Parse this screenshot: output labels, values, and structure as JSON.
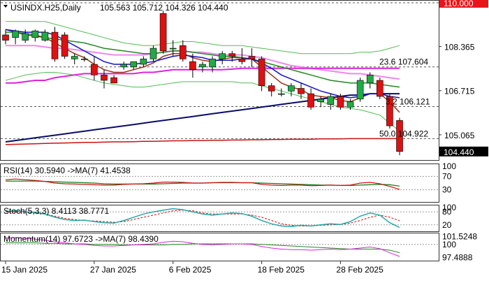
{
  "header": {
    "symbol": "USINDX.H25,Daily",
    "ohlc": "105.563 105.712 104.326 104.440"
  },
  "price_axis": {
    "ticks": [
      "110.000",
      "108.365",
      "106.715",
      "105.065",
      "104.440"
    ],
    "current": "104.440",
    "top_badge": "110.000"
  },
  "date_axis": [
    "15 Jan 2025",
    "27 Jan 2025",
    "6 Feb 2025",
    "18 Feb 2025",
    "28 Feb 2025"
  ],
  "fibo_levels": [
    {
      "label": "23.6 107.604",
      "value": 107.604
    },
    {
      "label": "3.2 106.121",
      "value": 106.121
    },
    {
      "label": "50.0 104.922",
      "value": 104.922
    }
  ],
  "rsi_panel": {
    "title": "RSI(14) 30.5940  ->MA(7) 41.4538",
    "axis": [
      "100",
      "70",
      "30",
      "0"
    ]
  },
  "stoch_panel": {
    "title": "Stoch(5,3,3) 8.4113 38.7771",
    "axis": [
      "100",
      "80",
      "20",
      "0"
    ]
  },
  "momentum_panel": {
    "title": "Momentum(14) 97.6723  ->MA(7) 98.4390",
    "axis": [
      "101.5248",
      "100",
      "97.4888"
    ]
  },
  "colors": {
    "up": "#22aa44",
    "down": "#dd1111",
    "blue_ma": "#1111cc",
    "magenta_ma": "#dd22dd",
    "green_ma": "#228822",
    "brown_ma": "#993311",
    "navy_ma": "#0b0b6e",
    "red_ma": "#cc1111",
    "pink_ma": "#ee88ee",
    "bb": "#55bb55"
  },
  "chart_data": {
    "type": "candlestick",
    "ylim": [
      104.2,
      110.0
    ],
    "candles": [
      {
        "o": 108.8,
        "h": 109.0,
        "l": 108.45,
        "c": 108.6
      },
      {
        "o": 108.7,
        "h": 109.0,
        "l": 108.45,
        "c": 108.95
      },
      {
        "o": 108.6,
        "h": 109.0,
        "l": 108.5,
        "c": 108.85
      },
      {
        "o": 108.7,
        "h": 109.0,
        "l": 108.55,
        "c": 108.95
      },
      {
        "o": 108.6,
        "h": 109.0,
        "l": 108.55,
        "c": 108.9
      },
      {
        "o": 108.9,
        "h": 109.1,
        "l": 107.8,
        "c": 107.9
      },
      {
        "o": 108.8,
        "h": 108.9,
        "l": 107.9,
        "c": 108.0
      },
      {
        "o": 107.9,
        "h": 108.1,
        "l": 107.7,
        "c": 108.0
      },
      {
        "o": 107.9,
        "h": 108.0,
        "l": 107.8,
        "c": 107.9
      },
      {
        "o": 107.7,
        "h": 108.0,
        "l": 107.1,
        "c": 107.3
      },
      {
        "o": 107.3,
        "h": 107.5,
        "l": 106.8,
        "c": 107.1
      },
      {
        "o": 107.2,
        "h": 107.3,
        "l": 107.0,
        "c": 107.0
      },
      {
        "o": 107.6,
        "h": 107.8,
        "l": 107.5,
        "c": 107.7
      },
      {
        "o": 107.6,
        "h": 107.8,
        "l": 107.5,
        "c": 107.8
      },
      {
        "o": 107.7,
        "h": 108.0,
        "l": 107.6,
        "c": 107.9
      },
      {
        "o": 107.9,
        "h": 108.4,
        "l": 107.8,
        "c": 108.3
      },
      {
        "o": 109.6,
        "h": 109.7,
        "l": 108.1,
        "c": 108.2
      },
      {
        "o": 108.3,
        "h": 108.6,
        "l": 108.0,
        "c": 108.3
      },
      {
        "o": 108.4,
        "h": 108.6,
        "l": 107.8,
        "c": 107.9
      },
      {
        "o": 107.8,
        "h": 108.1,
        "l": 107.2,
        "c": 107.5
      },
      {
        "o": 107.6,
        "h": 107.8,
        "l": 107.4,
        "c": 107.7
      },
      {
        "o": 107.6,
        "h": 108.0,
        "l": 107.4,
        "c": 107.9
      },
      {
        "o": 107.9,
        "h": 108.2,
        "l": 107.7,
        "c": 108.1
      },
      {
        "o": 108.1,
        "h": 108.2,
        "l": 107.8,
        "c": 108.0
      },
      {
        "o": 107.9,
        "h": 108.3,
        "l": 107.7,
        "c": 107.8
      },
      {
        "o": 108.0,
        "h": 108.3,
        "l": 107.6,
        "c": 107.9
      },
      {
        "o": 107.9,
        "h": 108.0,
        "l": 106.7,
        "c": 106.9
      },
      {
        "o": 106.9,
        "h": 107.0,
        "l": 106.5,
        "c": 106.7
      },
      {
        "o": 106.6,
        "h": 106.8,
        "l": 106.5,
        "c": 106.6
      },
      {
        "o": 106.7,
        "h": 107.0,
        "l": 106.5,
        "c": 106.9
      },
      {
        "o": 106.8,
        "h": 107.0,
        "l": 106.4,
        "c": 106.6
      },
      {
        "o": 106.6,
        "h": 106.8,
        "l": 106.0,
        "c": 106.1
      },
      {
        "o": 106.3,
        "h": 106.5,
        "l": 106.1,
        "c": 106.4
      },
      {
        "o": 106.2,
        "h": 106.6,
        "l": 106.0,
        "c": 106.5
      },
      {
        "o": 106.5,
        "h": 106.6,
        "l": 106.0,
        "c": 106.1
      },
      {
        "o": 106.1,
        "h": 106.4,
        "l": 106.0,
        "c": 106.3
      },
      {
        "o": 106.4,
        "h": 107.2,
        "l": 106.3,
        "c": 107.1
      },
      {
        "o": 107.0,
        "h": 107.4,
        "l": 106.8,
        "c": 107.3
      },
      {
        "o": 107.1,
        "h": 107.2,
        "l": 106.4,
        "c": 106.5
      },
      {
        "o": 106.5,
        "h": 106.6,
        "l": 105.3,
        "c": 105.4
      },
      {
        "o": 105.6,
        "h": 105.7,
        "l": 104.3,
        "c": 104.44
      }
    ],
    "ma_blue": [
      109.0,
      108.95,
      108.9,
      108.9,
      108.9,
      108.8,
      108.6,
      108.4,
      108.2,
      108.0,
      107.8,
      107.7,
      107.7,
      107.7,
      107.75,
      107.8,
      107.9,
      108.0,
      108.05,
      108.0,
      107.95,
      107.85,
      107.85,
      107.85,
      107.9,
      107.9,
      107.75,
      107.55,
      107.3,
      107.15,
      107.0,
      106.85,
      106.7,
      106.6,
      106.5,
      106.45,
      106.5,
      106.6,
      106.6,
      106.5,
      106.45
    ],
    "ma_magenta": [
      107.0,
      107.0,
      107.05,
      107.1,
      107.1,
      107.2,
      107.25,
      107.3,
      107.35,
      107.35,
      107.35,
      107.35,
      107.35,
      107.35,
      107.4,
      107.4,
      107.45,
      107.5,
      107.5,
      107.5,
      107.5,
      107.5,
      107.5,
      107.52,
      107.55,
      107.55,
      107.55,
      107.55,
      107.55,
      107.55,
      107.55,
      107.55,
      107.55,
      107.55,
      107.55,
      107.55,
      107.55,
      107.55,
      107.55,
      107.55,
      107.55
    ],
    "ma_pink": [
      108.4,
      108.4,
      108.4,
      108.4,
      108.35,
      108.3,
      108.3,
      108.25,
      108.2,
      108.15,
      108.1,
      108.05,
      108.05,
      108.05,
      108.05,
      108.1,
      108.15,
      108.2,
      108.2,
      108.15,
      108.15,
      108.1,
      108.05,
      108.05,
      108.05,
      108.0,
      107.95,
      107.85,
      107.75,
      107.65,
      107.6,
      107.55,
      107.5,
      107.45,
      107.4,
      107.35,
      107.35,
      107.3,
      107.25,
      107.2,
      107.15
    ],
    "ma_green": [
      108.9,
      108.9,
      108.85,
      108.8,
      108.7,
      108.65,
      108.6,
      108.55,
      108.5,
      108.4,
      108.3,
      108.25,
      108.2,
      108.15,
      108.1,
      108.1,
      108.15,
      108.2,
      108.2,
      108.15,
      108.1,
      108.05,
      108.0,
      108.0,
      107.95,
      107.9,
      107.8,
      107.7,
      107.6,
      107.5,
      107.4,
      107.3,
      107.2,
      107.1,
      107.05,
      107.0,
      107.0,
      107.0,
      106.95,
      106.9,
      106.85
    ],
    "ma_brown": [
      109.0,
      108.9,
      108.8,
      108.75,
      108.7,
      108.5,
      108.3,
      108.1,
      107.95,
      107.7,
      107.5,
      107.4,
      107.4,
      107.5,
      107.6,
      107.75,
      108.0,
      108.1,
      108.1,
      107.95,
      107.85,
      107.8,
      107.9,
      107.95,
      107.95,
      107.9,
      107.6,
      107.3,
      107.0,
      106.85,
      106.75,
      106.55,
      106.5,
      106.45,
      106.35,
      106.3,
      106.45,
      106.6,
      106.6,
      106.3,
      105.9
    ],
    "ma_navy": [
      104.8,
      104.85,
      104.9,
      104.95,
      105.0,
      105.05,
      105.1,
      105.15,
      105.2,
      105.25,
      105.3,
      105.35,
      105.4,
      105.45,
      105.5,
      105.55,
      105.6,
      105.65,
      105.7,
      105.75,
      105.8,
      105.85,
      105.9,
      105.95,
      106.0,
      106.05,
      106.1,
      106.15,
      106.2,
      106.25,
      106.3,
      106.35,
      106.4,
      106.45,
      106.5,
      106.55,
      106.55,
      106.6,
      106.6,
      106.6,
      106.6
    ],
    "ma_red": [
      104.7,
      104.71,
      104.72,
      104.73,
      104.74,
      104.75,
      104.76,
      104.77,
      104.78,
      104.78,
      104.79,
      104.8,
      104.8,
      104.81,
      104.82,
      104.82,
      104.83,
      104.84,
      104.84,
      104.85,
      104.85,
      104.86,
      104.86,
      104.87,
      104.87,
      104.88,
      104.88,
      104.89,
      104.89,
      104.9,
      104.9,
      104.9,
      104.91,
      104.91,
      104.91,
      104.92,
      104.92,
      104.92,
      104.92,
      104.92,
      104.92
    ],
    "bb_upper": [
      109.3,
      109.3,
      109.3,
      109.3,
      109.3,
      109.2,
      109.1,
      109.0,
      108.9,
      108.8,
      108.7,
      108.6,
      108.5,
      108.45,
      108.4,
      108.4,
      108.45,
      108.5,
      108.55,
      108.55,
      108.5,
      108.45,
      108.4,
      108.4,
      108.4,
      108.35,
      108.3,
      108.25,
      108.2,
      108.15,
      108.1,
      108.1,
      108.1,
      108.1,
      108.1,
      108.1,
      108.15,
      108.15,
      108.2,
      108.3,
      108.4
    ],
    "bb_lower": [
      107.1,
      107.2,
      107.3,
      107.35,
      107.4,
      107.4,
      107.35,
      107.3,
      107.2,
      107.1,
      107.0,
      106.95,
      106.9,
      106.85,
      106.85,
      106.9,
      106.95,
      107.0,
      107.05,
      107.05,
      107.05,
      107.05,
      107.05,
      107.05,
      107.0,
      107.0,
      106.9,
      106.8,
      106.7,
      106.6,
      106.5,
      106.4,
      106.3,
      106.2,
      106.1,
      106.05,
      106.0,
      105.9,
      105.8,
      105.5,
      105.2
    ],
    "rsi": [
      60,
      62,
      60,
      58,
      55,
      50,
      48,
      47,
      46,
      45,
      44,
      44,
      46,
      47,
      48,
      50,
      53,
      53,
      52,
      50,
      50,
      51,
      52,
      52,
      51,
      51,
      46,
      44,
      43,
      44,
      44,
      42,
      43,
      44,
      43,
      44,
      50,
      52,
      48,
      40,
      31
    ],
    "rsi_ma": [
      56,
      56,
      56,
      56,
      55,
      54,
      53,
      52,
      51,
      50,
      48,
      47,
      47,
      47,
      47,
      47,
      48,
      49,
      50,
      50,
      50,
      51,
      51,
      51,
      51,
      51,
      50,
      49,
      48,
      47,
      46,
      45,
      44,
      44,
      43,
      43,
      44,
      45,
      46,
      45,
      41
    ],
    "stoch_k": [
      82,
      85,
      80,
      78,
      70,
      55,
      45,
      40,
      42,
      35,
      30,
      28,
      40,
      55,
      70,
      80,
      88,
      95,
      90,
      80,
      70,
      65,
      70,
      75,
      72,
      60,
      40,
      25,
      15,
      12,
      18,
      15,
      20,
      25,
      22,
      35,
      60,
      75,
      65,
      30,
      8
    ],
    "stoch_d": [
      80,
      80,
      78,
      75,
      70,
      60,
      50,
      45,
      40,
      38,
      35,
      32,
      35,
      45,
      55,
      65,
      75,
      85,
      88,
      85,
      75,
      70,
      70,
      70,
      70,
      65,
      55,
      40,
      25,
      18,
      15,
      15,
      18,
      20,
      22,
      28,
      40,
      55,
      65,
      55,
      39
    ],
    "momentum": [
      101.2,
      101.3,
      101.2,
      101.0,
      100.8,
      100.5,
      100.3,
      100.1,
      100.0,
      99.8,
      99.7,
      99.7,
      99.8,
      99.9,
      100.0,
      100.1,
      100.4,
      100.6,
      100.5,
      100.2,
      100.0,
      99.9,
      100.0,
      100.1,
      100.1,
      100.0,
      99.6,
      99.3,
      99.1,
      99.0,
      99.0,
      98.9,
      99.0,
      99.1,
      99.0,
      99.1,
      99.3,
      99.5,
      99.2,
      98.4,
      97.7
    ],
    "momentum_ma": [
      100.3,
      100.3,
      100.3,
      100.3,
      100.2,
      100.2,
      100.1,
      100.1,
      100.1,
      100.0,
      100.0,
      100.0,
      99.9,
      99.9,
      99.9,
      99.9,
      99.9,
      100.0,
      100.0,
      100.1,
      100.1,
      100.1,
      100.1,
      100.1,
      100.1,
      100.1,
      100.0,
      99.9,
      99.8,
      99.7,
      99.6,
      99.5,
      99.4,
      99.3,
      99.2,
      99.1,
      99.1,
      99.1,
      99.1,
      98.9,
      98.4
    ]
  }
}
